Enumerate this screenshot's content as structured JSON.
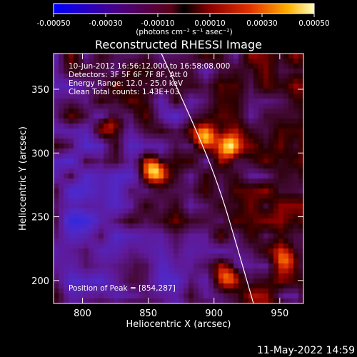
{
  "chart_data": {
    "type": "heatmap",
    "title": "Reconstructed RHESSI Image",
    "xlabel": "Heliocentric X (arcsec)",
    "ylabel": "Heliocentric Y (arcsec)",
    "xlim": [
      778,
      968
    ],
    "ylim": [
      182,
      378
    ],
    "x_ticks": [
      800,
      850,
      900,
      950
    ],
    "y_ticks": [
      200,
      250,
      300,
      350
    ],
    "colorbar": {
      "ticks": [
        "-0.00050",
        "-0.00030",
        "-0.00010",
        "0.00010",
        "0.00030",
        "0.00050"
      ],
      "range": [
        -0.0005,
        0.0005
      ],
      "unit_label": "(photons cm⁻² s⁻¹ asec⁻²)"
    },
    "annotations": [
      "10-Jun-2012 16:56:12.000 to 16:58:08.000",
      "Detectors: 3F 5F 6F 7F 8F, Att 0",
      "Energy Range: 12.0 - 25.0 keV",
      "Clean     Total counts: 1.43E+03"
    ],
    "peak_label": "Position of Peak = [854,287]",
    "bright_sources": [
      {
        "x": 854,
        "y": 287,
        "level": 1.0
      },
      {
        "x": 912,
        "y": 305,
        "level": 0.95
      },
      {
        "x": 893,
        "y": 312,
        "level": 0.85
      },
      {
        "x": 822,
        "y": 322,
        "level": 0.65
      },
      {
        "x": 910,
        "y": 203,
        "level": 0.7
      },
      {
        "x": 955,
        "y": 215,
        "level": 0.6
      }
    ],
    "limb_curve": [
      [
        860,
        378
      ],
      [
        890,
        310
      ],
      [
        905,
        270
      ],
      [
        918,
        225
      ],
      [
        930,
        182
      ]
    ]
  },
  "timestamp": "11-May-2022 14:59"
}
